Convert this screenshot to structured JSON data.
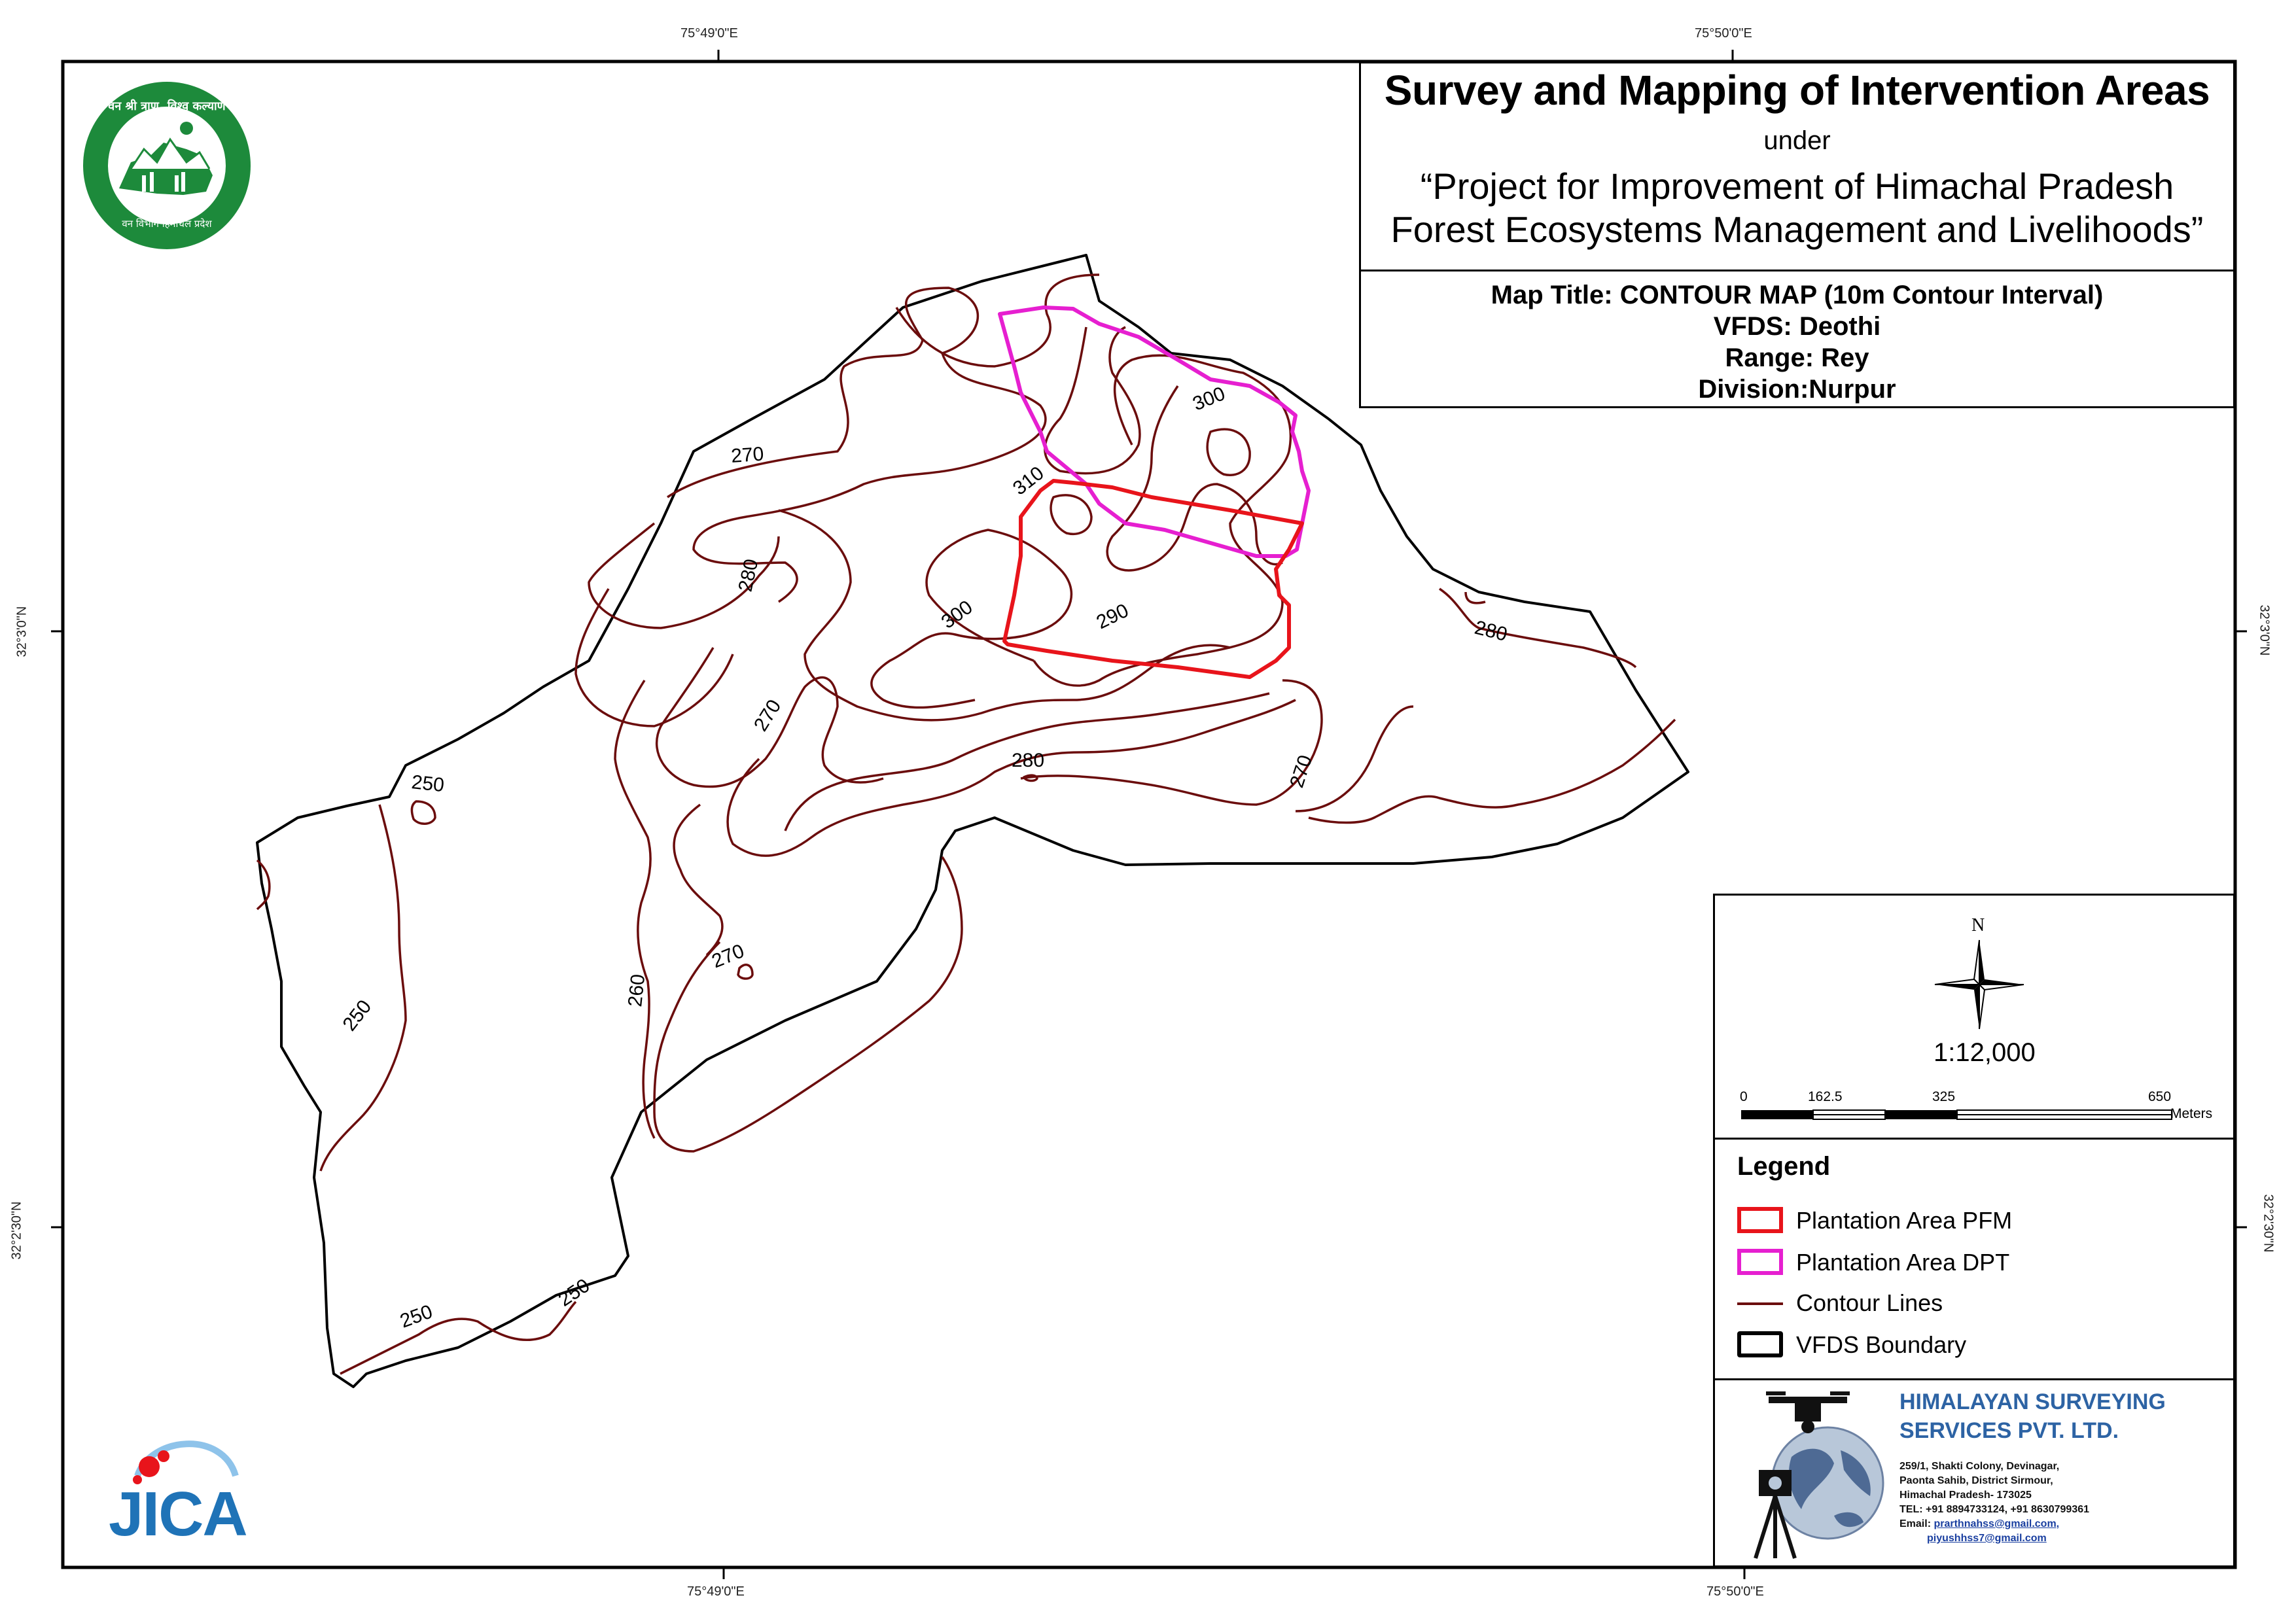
{
  "title": {
    "main": "Survey and Mapping of Intervention Areas",
    "under": "under",
    "project_line1": "“Project for Improvement of Himachal Pradesh",
    "project_line2": "Forest Ecosystems Management and Livelihoods”"
  },
  "map_info": {
    "map_title": "Map Title: CONTOUR MAP (10m Contour Interval)",
    "vfds": "VFDS: Deothi",
    "range": "Range: Rey",
    "division": "Division:Nurpur"
  },
  "coordinates": {
    "top_left": "75°49'0\"E",
    "top_right": "75°50'0\"E",
    "bottom_left": "75°49'0\"E",
    "bottom_right": "75°50'0\"E",
    "left_upper": "32°3'0\"N",
    "left_lower": "32°2'30\"N",
    "right_upper": "32°3'0\"N",
    "right_lower": "32°2'30\"N"
  },
  "north_arrow": {
    "label": "N"
  },
  "scale": {
    "ratio": "1:12,000",
    "ticks": [
      "0",
      "162.5",
      "325",
      "650"
    ],
    "unit": "Meters"
  },
  "legend": {
    "title": "Legend",
    "items": [
      {
        "label": "Plantation Area PFM",
        "color": "#e8141b"
      },
      {
        "label": "Plantation Area DPT",
        "color": "#e61fd0"
      },
      {
        "label": "Contour Lines",
        "color": "#6b0d0d"
      },
      {
        "label": "VFDS Boundary",
        "color": "#000000"
      }
    ]
  },
  "contour_labels": [
    "270",
    "280",
    "300",
    "310",
    "300",
    "290",
    "280",
    "270",
    "280",
    "270",
    "250",
    "270",
    "260",
    "250",
    "250",
    "250"
  ],
  "company": {
    "name_line1": "HIMALAYAN SURVEYING",
    "name_line2": "SERVICES PVT. LTD.",
    "address_line1": "259/1, Shakti Colony, Devinagar,",
    "address_line2": "Paonta Sahib, District Sirmour,",
    "address_line3": "Himachal Pradesh- 173025",
    "tel": "TEL: +91 8894733124, +91 8630799361",
    "email_label": "Email:",
    "email1": "prarthnahss@gmail.com,",
    "email2": "piyushhss7@gmail.com"
  },
  "logos": {
    "forest_dept_text": "वन श्री त्राण, विश्व कल्याण",
    "forest_dept_bottom": "वन विभाग हिमाचल प्रदेश",
    "jica_text": "JICA"
  }
}
